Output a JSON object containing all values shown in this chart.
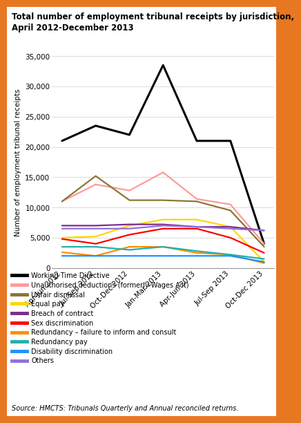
{
  "title": "Total number of employment tribunal receipts by jurisdiction,\nApril 2012-December 2013",
  "ylabel": "Number of employment tribunal receipts",
  "source": "Source: HMCTS: Tribunals Quarterly and Annual reconciled returns.",
  "x_labels": [
    "Apr-Jun 2012",
    "Jul-Sep 2012",
    "Oct-Dec 2012",
    "Jan-Mar 2013",
    "Apr-Jun 2013",
    "Jul-Sep 2013",
    "Oct-Dec 2013"
  ],
  "ylim": [
    0,
    35000
  ],
  "yticks": [
    0,
    5000,
    10000,
    15000,
    20000,
    25000,
    30000,
    35000
  ],
  "series": [
    {
      "label": "Working Time Directive",
      "color": "#000000",
      "linewidth": 2.2,
      "data": [
        21000,
        23500,
        22000,
        33500,
        21000,
        21000,
        4000
      ]
    },
    {
      "label": "Unauthorised deductions (formerly Wages Act)",
      "color": "#FF9999",
      "linewidth": 1.6,
      "data": [
        11000,
        13800,
        12800,
        15800,
        11400,
        10500,
        4000
      ]
    },
    {
      "label": "Unfair dismissal",
      "color": "#8B7536",
      "linewidth": 1.6,
      "data": [
        11000,
        15200,
        11200,
        11200,
        11000,
        9500,
        3500
      ]
    },
    {
      "label": "Equal pay",
      "color": "#FFD700",
      "linewidth": 1.6,
      "data": [
        5000,
        5200,
        7000,
        8000,
        8000,
        6800,
        1000
      ]
    },
    {
      "label": "Breach of contract",
      "color": "#7B2D8B",
      "linewidth": 1.6,
      "data": [
        7000,
        7000,
        7200,
        7200,
        6800,
        6800,
        6200
      ]
    },
    {
      "label": "Sex discrimination",
      "color": "#FF0000",
      "linewidth": 1.6,
      "data": [
        4800,
        4000,
        5500,
        6500,
        6500,
        5000,
        2500
      ]
    },
    {
      "label": "Redundancy – failure to inform and consult",
      "color": "#FF8C00",
      "linewidth": 1.6,
      "data": [
        2600,
        2000,
        3500,
        3500,
        2500,
        2200,
        800
      ]
    },
    {
      "label": "Redundancy pay",
      "color": "#20B2AA",
      "linewidth": 1.6,
      "data": [
        3500,
        3500,
        3000,
        3500,
        2800,
        2200,
        1500
      ]
    },
    {
      "label": "Disability discrimination",
      "color": "#1E90FF",
      "linewidth": 1.6,
      "data": [
        2000,
        2000,
        2000,
        2000,
        2000,
        2000,
        1000
      ]
    },
    {
      "label": "Others",
      "color": "#9370DB",
      "linewidth": 1.6,
      "data": [
        6500,
        6500,
        6500,
        7000,
        6800,
        6500,
        6200
      ]
    }
  ],
  "border_color": "#E87722",
  "background_color": "#FFFFFF",
  "title_fontsize": 8.5,
  "ylabel_fontsize": 7.5,
  "tick_fontsize": 7.5,
  "legend_fontsize": 7.0,
  "source_fontsize": 7.0
}
